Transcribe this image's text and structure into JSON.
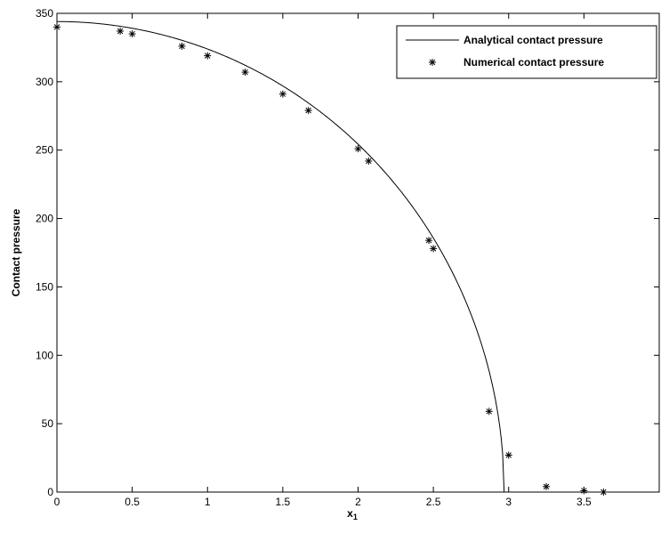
{
  "chart_data": {
    "type": "line",
    "xlabel_main": "x",
    "xlabel_sub": "1",
    "ylabel": "Contact pressure",
    "xlim": [
      0,
      4
    ],
    "ylim": [
      0,
      350
    ],
    "xticks": [
      0,
      0.5,
      1,
      1.5,
      2,
      2.5,
      3,
      3.5
    ],
    "xtick_labels": [
      "0",
      "0.5",
      "1",
      "1.5",
      "2",
      "2.5",
      "3",
      "3.5"
    ],
    "yticks": [
      0,
      50,
      100,
      150,
      200,
      250,
      300,
      350
    ],
    "ytick_labels": [
      "0",
      "50",
      "100",
      "150",
      "200",
      "250",
      "300",
      "350"
    ],
    "grid": false,
    "legend_position": "top-right",
    "series": [
      {
        "name": "Analytical contact pressure",
        "kind": "line",
        "color": "#000000",
        "formula": "p0*sqrt(1-(x/a)^2)",
        "p0": 344,
        "a": 2.97
      },
      {
        "name": "Numerical contact pressure",
        "kind": "scatter",
        "marker": "asterisk",
        "color": "#000000",
        "x": [
          0,
          0.42,
          0.5,
          0.83,
          1.0,
          1.25,
          1.5,
          1.67,
          2.0,
          2.07,
          2.47,
          2.5,
          2.87,
          3.0,
          3.25,
          3.5,
          3.63
        ],
        "y": [
          340,
          337,
          335,
          326,
          319,
          307,
          291,
          279,
          251,
          242,
          184,
          178,
          59,
          27,
          4,
          1,
          0
        ]
      }
    ]
  }
}
